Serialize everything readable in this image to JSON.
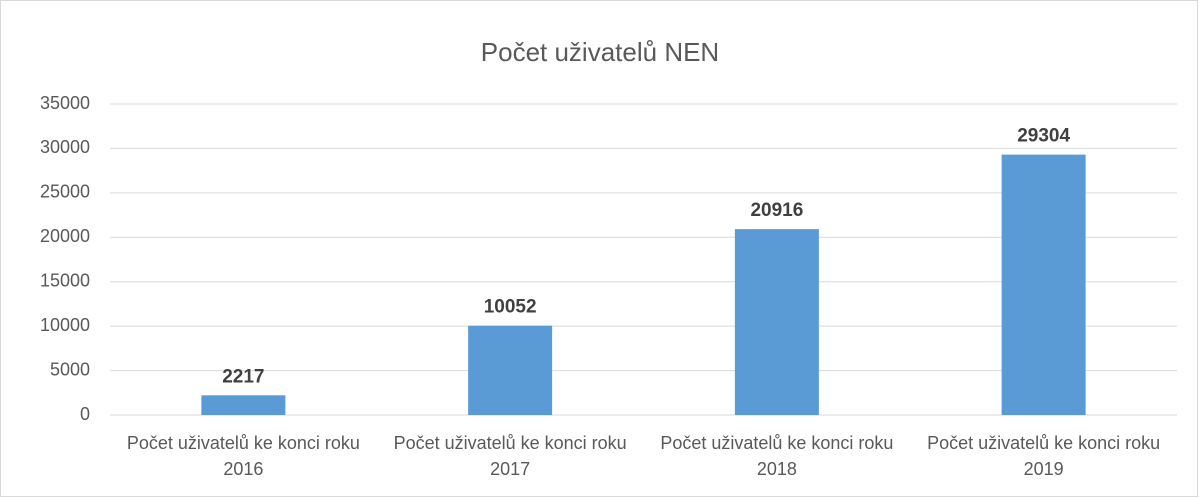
{
  "chart_data": {
    "type": "bar",
    "title": "Počet uživatelů NEN",
    "categories": [
      "Počet uživatelů ke konci roku 2016",
      "Počet uživatelů ke konci roku 2017",
      "Počet uživatelů ke konci roku 2018",
      "Počet uživatelů ke konci roku 2019"
    ],
    "values": [
      2217,
      10052,
      20916,
      29304
    ],
    "color": "#5b9bd5",
    "ylim": [
      0,
      35000
    ],
    "yticks": [
      0,
      5000,
      10000,
      15000,
      20000,
      25000,
      30000,
      35000
    ],
    "grid": true
  }
}
